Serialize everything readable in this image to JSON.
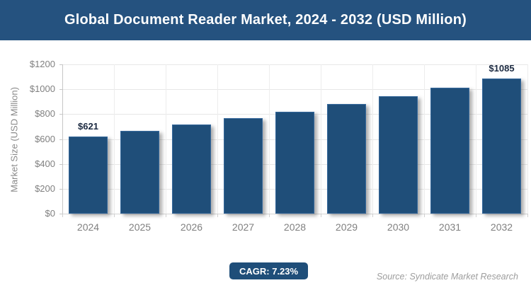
{
  "header": {
    "title": "Global Document Reader Market, 2024 - 2032 (USD Million)"
  },
  "footer": {
    "cagr_label": "CAGR: 7.23%",
    "source": "Source: Syndicate Market Research"
  },
  "colors": {
    "header_bg": "#25527f",
    "bar_fill": "#1f4e79",
    "bar_border": "#35689c",
    "badge_bg": "#1f4e79",
    "grid_major": "#e7e7e7",
    "axis_line": "#c6c6c6",
    "baseline": "#d4d4d4",
    "tick_text": "#808080",
    "data_label_text": "#1b2940",
    "source_text": "#9d9d9d",
    "title_text": "#ffffff"
  },
  "chart_data": {
    "type": "bar",
    "title": "Global Document Reader Market, 2024 - 2032 (USD Million)",
    "categories": [
      "2024",
      "2025",
      "2026",
      "2027",
      "2028",
      "2029",
      "2030",
      "2031",
      "2032"
    ],
    "values": [
      621,
      666,
      714,
      766,
      821,
      880,
      944,
      1012,
      1085
    ],
    "bar_labels": [
      "$621",
      null,
      null,
      null,
      null,
      null,
      null,
      null,
      "$1085"
    ],
    "xlabel": "",
    "ylabel": "Market Size (USD Million)",
    "ylim": [
      0,
      1200
    ],
    "ytick_step": 200,
    "yticks": [
      "$0",
      "$200",
      "$400",
      "$600",
      "$800",
      "$1000",
      "$1200"
    ],
    "grid": true,
    "legend": "none",
    "cagr": "7.23%"
  }
}
